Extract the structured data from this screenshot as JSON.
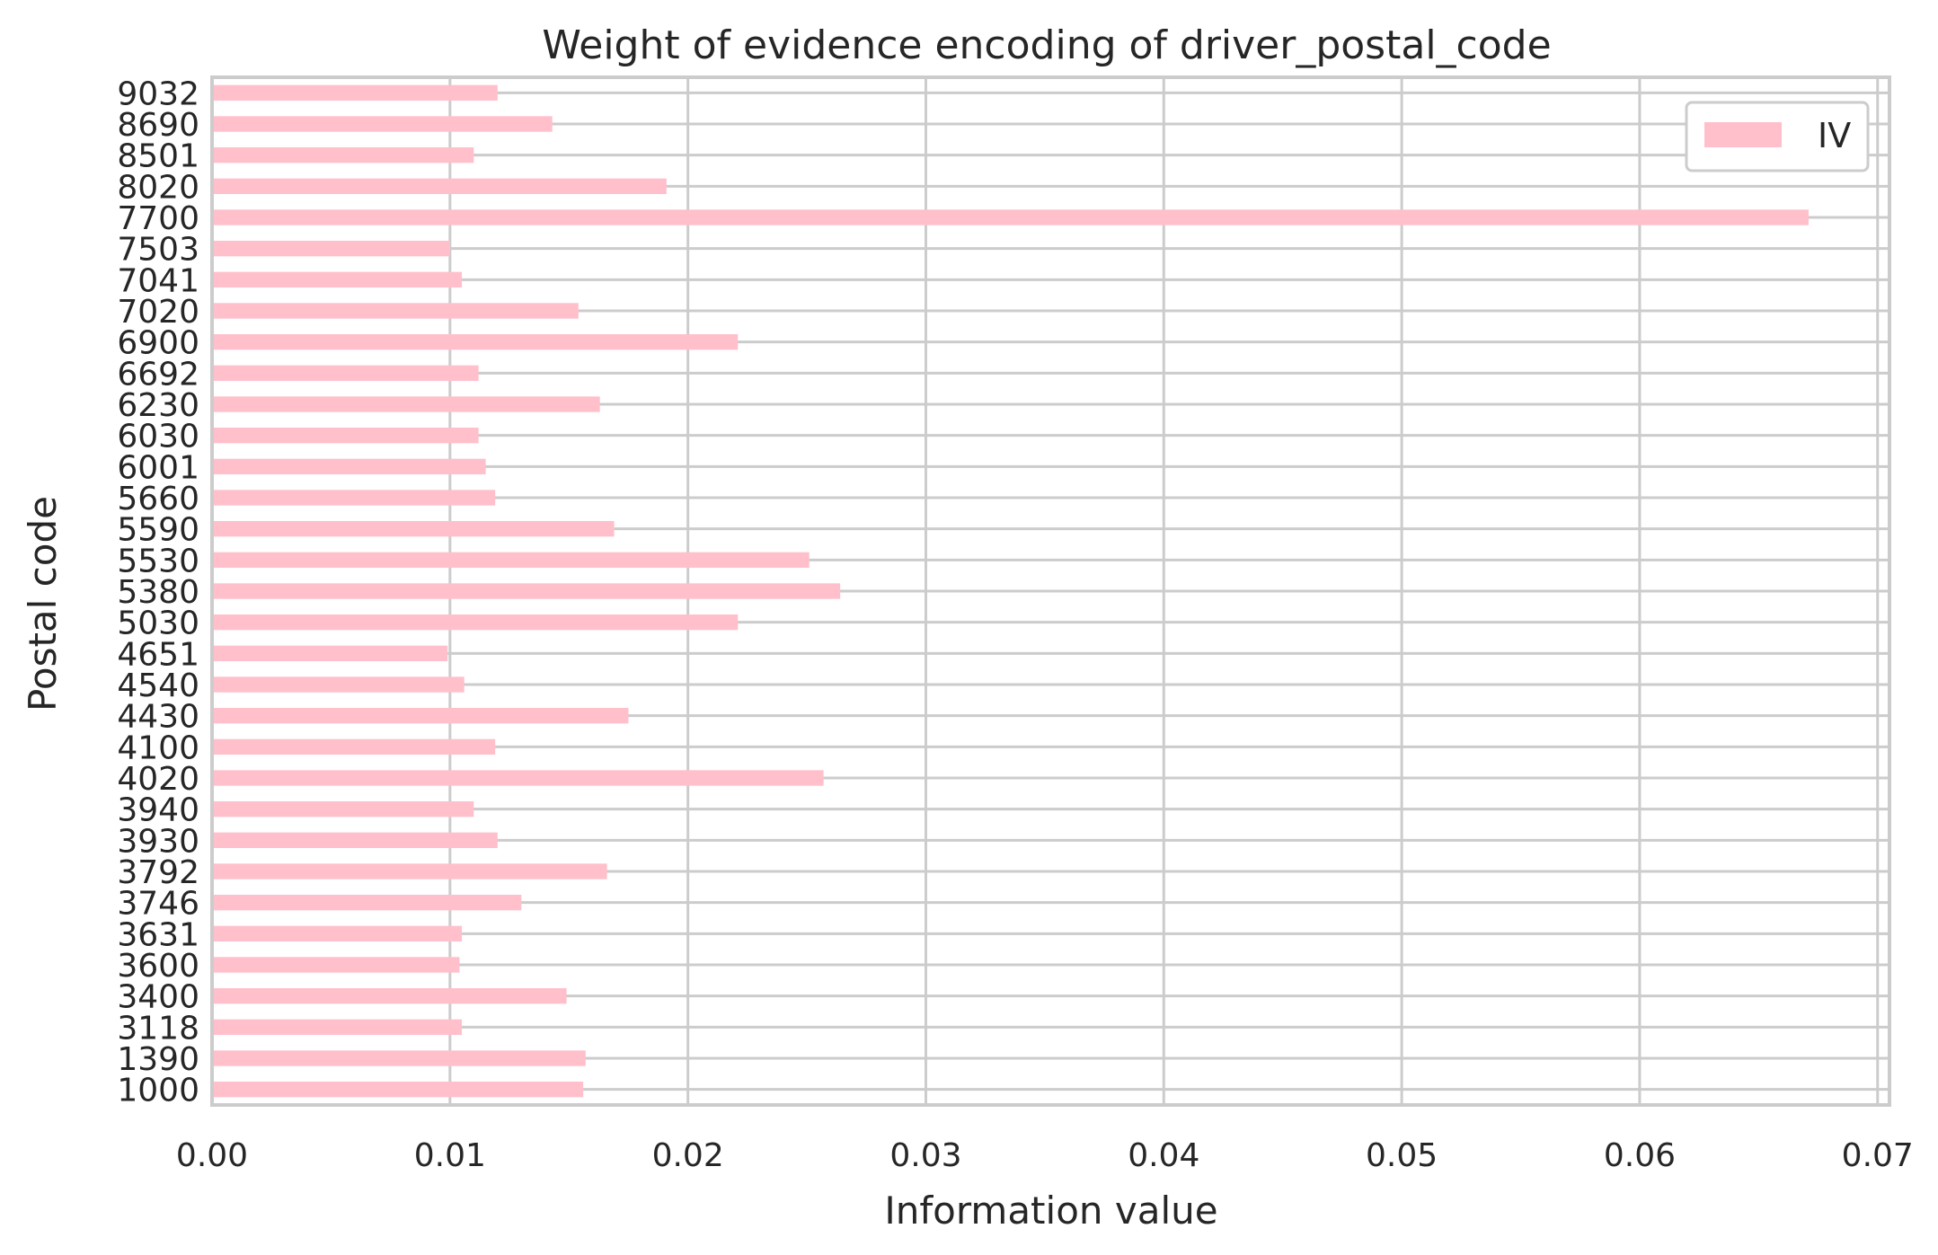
{
  "chart_data": {
    "type": "bar",
    "orientation": "horizontal",
    "title": "Weight of evidence encoding of driver_postal_code",
    "xlabel": "Information value",
    "ylabel": "Postal code",
    "xlim": [
      0,
      0.0705
    ],
    "xticks": [
      0.0,
      0.01,
      0.02,
      0.03,
      0.04,
      0.05,
      0.06,
      0.07
    ],
    "xtick_labels": [
      "0.00",
      "0.01",
      "0.02",
      "0.03",
      "0.04",
      "0.05",
      "0.06",
      "0.07"
    ],
    "grid": true,
    "legend_position": "top-right",
    "bar_color": "#ffc0cb",
    "categories": [
      "1000",
      "1390",
      "3118",
      "3400",
      "3600",
      "3631",
      "3746",
      "3792",
      "3930",
      "3940",
      "4020",
      "4100",
      "4430",
      "4540",
      "4651",
      "5030",
      "5380",
      "5530",
      "5590",
      "5660",
      "6001",
      "6030",
      "6230",
      "6692",
      "6900",
      "7020",
      "7041",
      "7503",
      "7700",
      "8020",
      "8501",
      "8690",
      "9032"
    ],
    "series": [
      {
        "name": "IV",
        "values": [
          0.0156,
          0.0157,
          0.0105,
          0.0149,
          0.0104,
          0.0105,
          0.013,
          0.0166,
          0.012,
          0.011,
          0.0257,
          0.0119,
          0.0175,
          0.0106,
          0.0099,
          0.0221,
          0.0264,
          0.0251,
          0.0169,
          0.0119,
          0.0115,
          0.0112,
          0.0163,
          0.0112,
          0.0221,
          0.0154,
          0.0105,
          0.01,
          0.0671,
          0.0191,
          0.011,
          0.0143,
          0.012
        ]
      }
    ]
  }
}
